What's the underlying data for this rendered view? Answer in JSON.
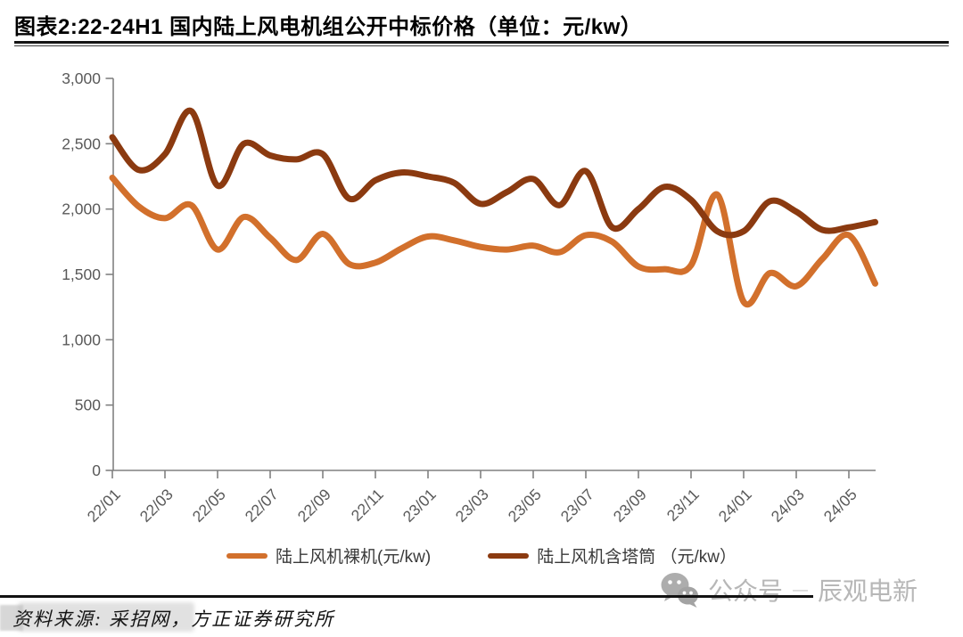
{
  "title": "图表2:22-24H1 国内陆上风电机组公开中标价格（单位：元/kw）",
  "chart_data": {
    "type": "line",
    "title": "22-24H1 国内陆上风电机组公开中标价格",
    "unit": "元/kw",
    "x": [
      "22/01",
      "22/02",
      "22/03",
      "22/04",
      "22/05",
      "22/06",
      "22/07",
      "22/08",
      "22/09",
      "22/10",
      "22/11",
      "22/12",
      "23/01",
      "23/02",
      "23/03",
      "23/04",
      "23/05",
      "23/06",
      "23/07",
      "23/08",
      "23/09",
      "23/10",
      "23/11",
      "23/12",
      "24/01",
      "24/02",
      "24/03",
      "24/04",
      "24/05",
      "24/06"
    ],
    "x_tick_labels": [
      "22/01",
      "22/03",
      "22/05",
      "22/07",
      "22/09",
      "22/11",
      "23/01",
      "23/03",
      "23/05",
      "23/07",
      "23/09",
      "23/11",
      "24/01",
      "24/03",
      "24/05"
    ],
    "y_ticks": [
      "0",
      "500",
      "1,000",
      "1,500",
      "2,000",
      "2,500",
      "3,000"
    ],
    "ylim": [
      0,
      3000
    ],
    "grid": false,
    "legend_position": "bottom",
    "series": [
      {
        "name": "陆上风机裸机(元/kw)",
        "color": "#D2702C",
        "values": [
          2240,
          2020,
          1930,
          2030,
          1690,
          1940,
          1780,
          1610,
          1810,
          1580,
          1590,
          1700,
          1790,
          1760,
          1710,
          1690,
          1720,
          1670,
          1800,
          1750,
          1560,
          1540,
          1570,
          2110,
          1290,
          1510,
          1410,
          1620,
          1800,
          1430
        ]
      },
      {
        "name": "陆上风机含塔筒 （元/kw）",
        "color": "#8B3A10",
        "values": [
          2550,
          2300,
          2420,
          2750,
          2180,
          2500,
          2410,
          2380,
          2420,
          2080,
          2220,
          2280,
          2250,
          2200,
          2040,
          2130,
          2230,
          2030,
          2290,
          1860,
          2000,
          2170,
          2070,
          1830,
          1830,
          2060,
          1980,
          1840,
          1860,
          1900
        ]
      }
    ],
    "axis_color": "#808080",
    "tick_label_color": "#595959"
  },
  "legend": {
    "items": [
      {
        "label": "陆上风机裸机(元/kw)",
        "color": "#D2702C"
      },
      {
        "label": "陆上风机含塔筒 （元/kw）",
        "color": "#8B3A10"
      }
    ]
  },
  "footer": {
    "source": "资料来源: 采招网，方正证券研究所",
    "wechat_label": "公众号",
    "separator": "—",
    "account_name": "辰观电新"
  }
}
